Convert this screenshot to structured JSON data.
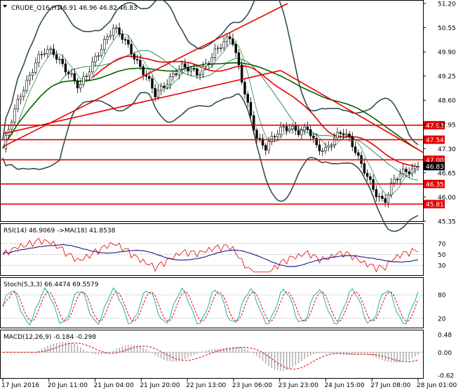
{
  "header": {
    "symbol": "CRUDE_Q16,H1",
    "ohlc": "46.91 46.96 46.82 46.83"
  },
  "colors": {
    "candle": "#000000",
    "bollinger": "#2f4f4f",
    "ma_short": "#2e8b57",
    "ma_long": "#006400",
    "trend": "#e60000",
    "level_tag_bg": "#e60000",
    "price_tag_bg": "#000000",
    "rsi_line": "#e60000",
    "rsi_ma": "#000080",
    "stoch_main": "#20b2aa",
    "stoch_signal": "#e60000",
    "macd_hist": "#a9a9a9",
    "macd_signal": "#e60000"
  },
  "price_axis": [
    "51.20",
    "50.55",
    "49.90",
    "49.25",
    "48.60",
    "47.95",
    "47.30",
    "46.65",
    "46.00",
    "45.35"
  ],
  "level_tags": [
    "47.93",
    "47.54",
    "47.00",
    "46.35",
    "45.81"
  ],
  "current_price": "46.83",
  "time_axis": [
    "17 Jun 2016",
    "20 Jun 11:00",
    "21 Jun 04:00",
    "21 Jun 20:00",
    "22 Jun 13:00",
    "23 Jun 06:00",
    "23 Jun 23:00",
    "24 Jun 15:00",
    "27 Jun 08:00",
    "28 Jun 01:00"
  ],
  "rsi": {
    "label": "RSI(14) 46.9069 ->MA(18) 41.8538",
    "axis": [
      "70",
      "50",
      "30"
    ]
  },
  "stoch": {
    "label": "Stoch(5,3,3) 66.4474 69.5579",
    "axis": [
      "80",
      "20"
    ]
  },
  "macd": {
    "label": "MACD(12,26,9) -0.184 -0.298",
    "axis": [
      "0.48",
      "0.00",
      "-0.62"
    ]
  },
  "chart_data": {
    "type": "candlestick",
    "price_ylim": [
      45.35,
      51.2
    ],
    "horizontal_levels": [
      47.93,
      47.54,
      47.0,
      46.35,
      45.81
    ],
    "last_price": 46.83,
    "price_path": [
      47.3,
      48.0,
      48.7,
      49.2,
      49.7,
      49.9,
      49.85,
      49.6,
      49.3,
      48.9,
      49.3,
      49.8,
      50.2,
      50.5,
      50.3,
      50.0,
      49.6,
      49.2,
      48.7,
      49.0,
      49.3,
      49.5,
      49.4,
      49.3,
      49.6,
      49.9,
      50.1,
      50.3,
      49.4,
      48.4,
      47.5,
      47.3,
      47.7,
      47.9,
      47.8,
      47.7,
      47.9,
      47.4,
      47.2,
      47.5,
      47.8,
      47.6,
      47.0,
      46.5,
      46.1,
      45.9,
      46.4,
      46.6,
      46.7,
      46.85
    ],
    "rsi_ylim": [
      15,
      85
    ],
    "rsi_levels": [
      70,
      50,
      30
    ],
    "stoch_ylim": [
      0,
      100
    ],
    "stoch_levels": [
      80,
      20
    ],
    "macd_ylim": [
      -0.62,
      0.48
    ],
    "macd_levels": [
      0.48,
      0.0,
      -0.62
    ]
  }
}
